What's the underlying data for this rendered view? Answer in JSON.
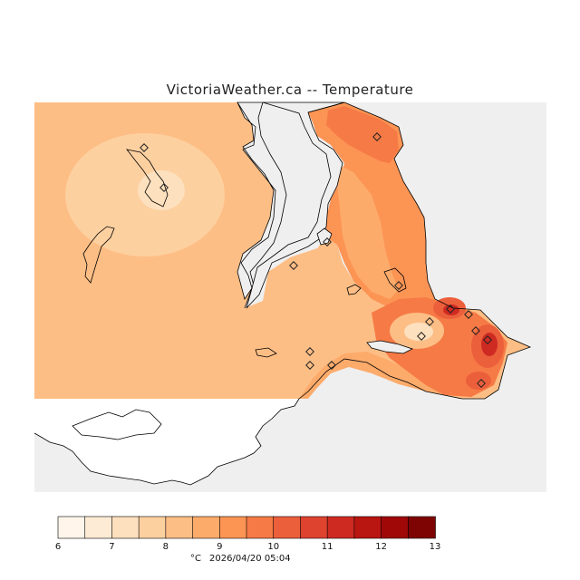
{
  "title": "VictoriaWeather.ca -- Temperature",
  "legend": {
    "ticks": [
      "6",
      "7",
      "8",
      "9",
      "10",
      "11",
      "12",
      "13"
    ],
    "colors": [
      "#fff5eb",
      "#feebd5",
      "#fde0be",
      "#fdd0a0",
      "#fdbe85",
      "#fdab6b",
      "#fc9454",
      "#f67a45",
      "#ec5f3b",
      "#de4330",
      "#ce2a22",
      "#b91511",
      "#a00808",
      "#7e0404"
    ],
    "unit": "°C",
    "timestamp": "2026/04/20 05:04"
  },
  "colors": {
    "background": "#efefef",
    "base_field": "#fdbe85",
    "cool_field": "#fdd0a0",
    "warm_field": "#f67a45",
    "hot_field": "#de4330",
    "coastline": "#000000"
  }
}
